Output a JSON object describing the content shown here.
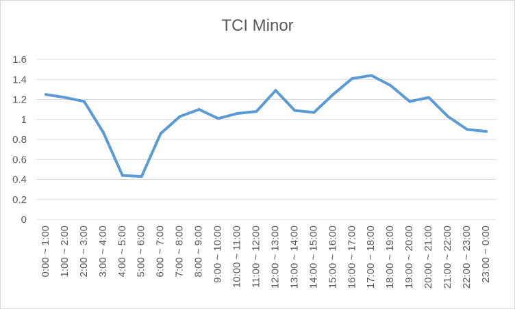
{
  "chart_data": {
    "type": "line",
    "title": "TCI Minor",
    "xlabel": "",
    "ylabel": "",
    "ylim": [
      0,
      1.6
    ],
    "yticks": [
      "0",
      "0.2",
      "0.4",
      "0.6",
      "0.8",
      "1",
      "1.2",
      "1.4",
      "1.6"
    ],
    "grid": true,
    "legend": "none",
    "line_color": "#5b9bd5",
    "categories": [
      "0:00 ~ 1:00",
      "1:00 ~ 2:00",
      "2:00 ~ 3:00",
      "3:00 ~ 4:00",
      "4:00 ~ 5:00",
      "5:00 ~ 6:00",
      "6:00 ~ 7:00",
      "7:00 ~ 8:00",
      "8:00 ~ 9:00",
      "9:00 ~ 10:00",
      "10:00 ~ 11:00",
      "11:00 ~ 12:00",
      "12:00 ~ 13:00",
      "13:00 ~ 14:00",
      "14:00 ~ 15:00",
      "15:00 ~ 16:00",
      "16:00 ~ 17:00",
      "17:00 ~ 18:00",
      "18:00 ~ 19:00",
      "19:00 ~ 20:00",
      "20:00 ~ 21:00",
      "21:00 ~ 22:00",
      "22:00 ~ 23:00",
      "23:00 ~ 0:00"
    ],
    "values": [
      1.25,
      1.22,
      1.18,
      0.87,
      0.44,
      0.43,
      0.86,
      1.03,
      1.1,
      1.01,
      1.06,
      1.08,
      1.29,
      1.09,
      1.07,
      1.25,
      1.41,
      1.44,
      1.34,
      1.18,
      1.22,
      1.03,
      0.9,
      0.88
    ]
  }
}
